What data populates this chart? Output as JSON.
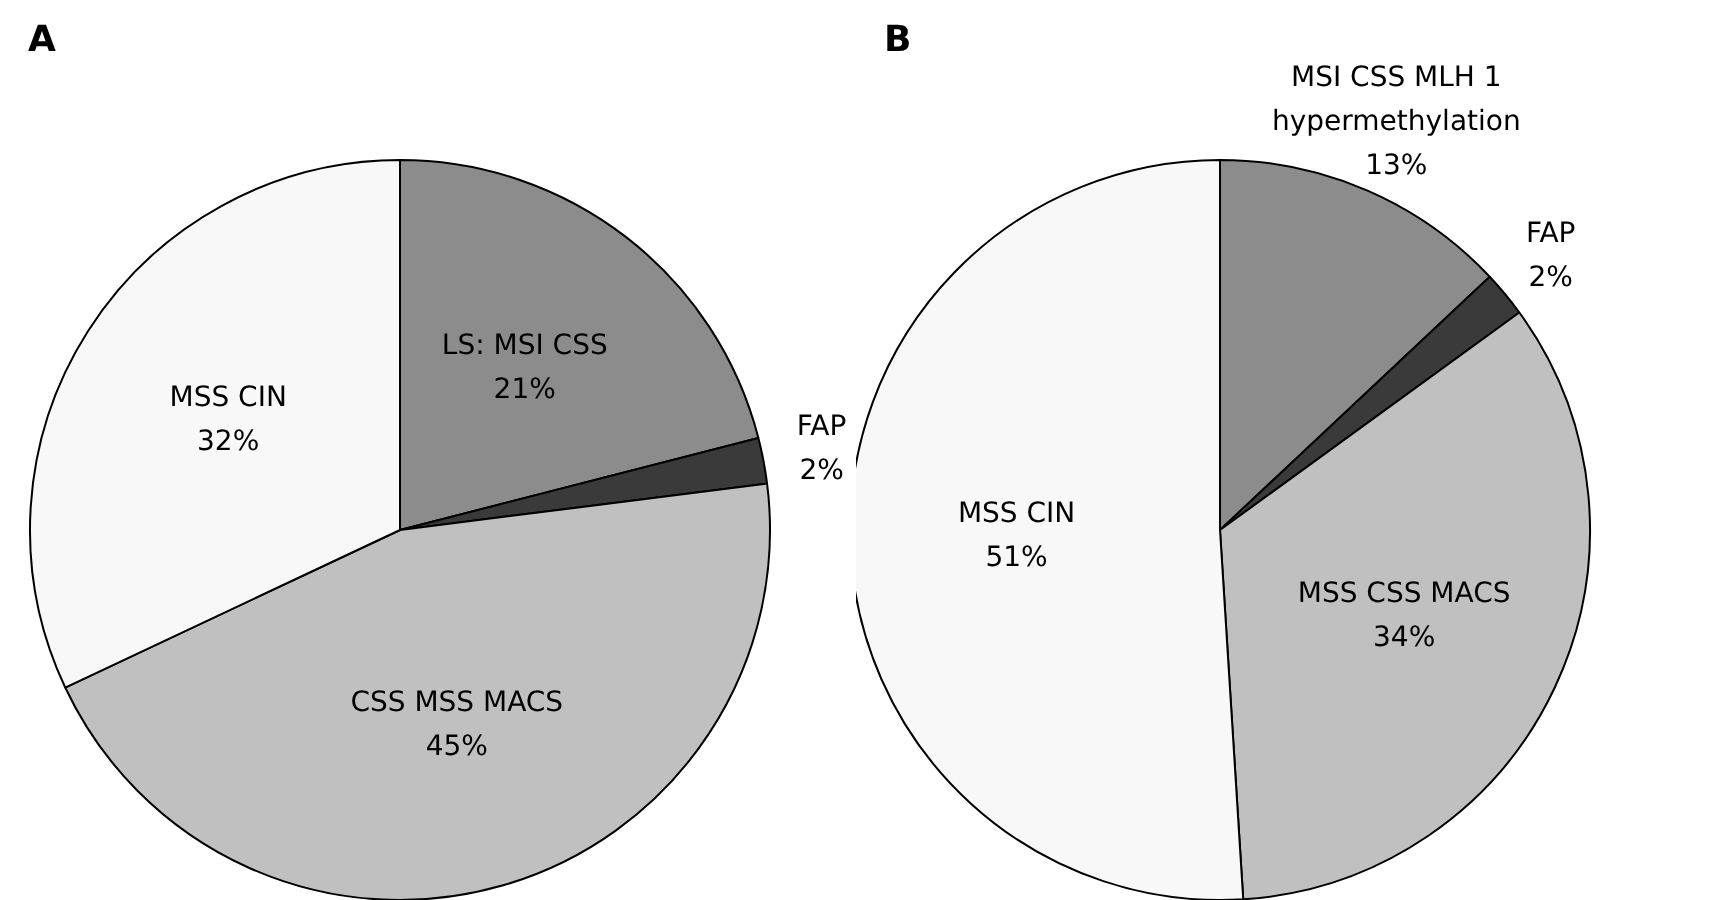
{
  "chart_data": [
    {
      "type": "pie",
      "title": "A",
      "categories": [
        "LS: MSI CSS",
        "FAP",
        "CSS MSS MACS",
        "MSS CIN"
      ],
      "values": [
        21,
        2,
        45,
        32
      ],
      "colors": [
        "#8c8c8c",
        "#3a3a3a",
        "#c0c0c0",
        "#f8f8f8"
      ],
      "value_labels": [
        "21%",
        "2%",
        "45%",
        "32%"
      ]
    },
    {
      "type": "pie",
      "title": "B",
      "categories": [
        "MSI CSS MLH 1 hypermethylation",
        "FAP",
        "MSS CSS MACS",
        "MSS CIN"
      ],
      "values": [
        13,
        2,
        34,
        51
      ],
      "colors": [
        "#8c8c8c",
        "#3a3a3a",
        "#c0c0c0",
        "#f8f8f8"
      ],
      "value_labels": [
        "13%",
        "2%",
        "34%",
        "51%"
      ]
    }
  ]
}
